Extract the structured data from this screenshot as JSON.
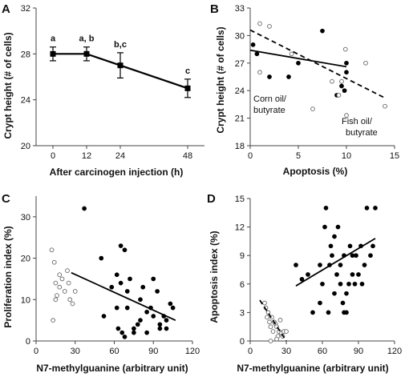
{
  "chart_data": [
    {
      "panel": "A",
      "type": "line",
      "xlabel": "After carcinogen injection (h)",
      "ylabel": "Crypt height (# of cells)",
      "xlim": [
        -6,
        54
      ],
      "ylim": [
        20,
        32
      ],
      "xticks": [
        0,
        12,
        24,
        48
      ],
      "yticks": [
        20,
        24,
        28,
        32
      ],
      "grid": false,
      "x": [
        0,
        12,
        24,
        48
      ],
      "y": [
        28.0,
        28.0,
        27.0,
        25.0
      ],
      "err": [
        0.6,
        0.6,
        1.1,
        0.8
      ],
      "letters": [
        "a",
        "a, b",
        "b,c",
        "c"
      ]
    },
    {
      "panel": "B",
      "type": "scatter",
      "xlabel": "Apoptosis (%)",
      "ylabel": "Crypt height (# of cells)",
      "xlim": [
        0,
        15
      ],
      "ylim": [
        18,
        33
      ],
      "xticks": [
        0,
        5,
        10,
        15
      ],
      "yticks": [
        18,
        21,
        24,
        27,
        30,
        33
      ],
      "grid": false,
      "series": [
        {
          "marker": "filled",
          "x": [
            0.3,
            0.7,
            2,
            4,
            5,
            7.5,
            9,
            9.5,
            9.8,
            10,
            10
          ],
          "y": [
            29,
            28,
            25.5,
            25.5,
            27,
            30.5,
            23.5,
            24.5,
            24,
            26,
            27
          ],
          "fit": [
            [
              0,
              28.4
            ],
            [
              10,
              26.6
            ]
          ]
        },
        {
          "marker": "open",
          "x": [
            1,
            1,
            2,
            4.3,
            6.5,
            8.5,
            9.2,
            9.5,
            9.9,
            10,
            12,
            14
          ],
          "y": [
            31.3,
            26,
            31,
            28,
            22,
            25,
            23.5,
            25,
            28.5,
            21.3,
            27,
            22.3
          ],
          "fit": [
            [
              0,
              30.6
            ],
            [
              14,
              23.2
            ]
          ]
        }
      ],
      "annotations": [
        "Corn oil/",
        "butyrate",
        "Fish oil/",
        "butyrate"
      ]
    },
    {
      "panel": "C",
      "type": "scatter",
      "xlabel": "N7-methylguanine (arbitrary unit)",
      "ylabel": "Proliferation index (%)",
      "xlim": [
        0,
        120
      ],
      "ylim": [
        0,
        35
      ],
      "xticks": [
        0,
        30,
        60,
        90,
        120
      ],
      "yticks": [
        0,
        10,
        20,
        30
      ],
      "grid": false,
      "series": [
        {
          "marker": "filled",
          "x": [
            37,
            50,
            52,
            58,
            62,
            63,
            65,
            66,
            68,
            70,
            72,
            75,
            78,
            80,
            82,
            85,
            88,
            90,
            93,
            95,
            98,
            100,
            103,
            105,
            62,
            65,
            70,
            75,
            80,
            85,
            90,
            95,
            100,
            68
          ],
          "y": [
            32,
            20,
            6,
            13,
            8,
            3,
            23,
            2,
            22,
            8,
            15,
            2,
            4,
            10,
            13,
            2,
            8,
            15,
            12,
            3,
            6,
            5,
            9,
            8,
            16,
            14,
            12,
            3,
            5,
            7,
            6,
            4,
            3,
            1
          ],
          "fit": [
            [
              27,
              16.5
            ],
            [
              107,
              5
            ]
          ]
        },
        {
          "marker": "open",
          "x": [
            12,
            13,
            14,
            15,
            16,
            18,
            20,
            22,
            24,
            26,
            28,
            30,
            15,
            18,
            25
          ],
          "y": [
            22,
            5,
            19,
            14,
            11,
            16,
            15,
            12,
            17,
            10,
            9,
            12,
            10,
            13,
            14
          ]
        }
      ]
    },
    {
      "panel": "D",
      "type": "scatter",
      "xlabel": "N7-methylguanine (arbitrary unit)",
      "ylabel": "Apoptosis index (%)",
      "xlim": [
        0,
        120
      ],
      "ylim": [
        0,
        15
      ],
      "xticks": [
        0,
        30,
        60,
        90,
        120
      ],
      "yticks": [
        0,
        3,
        6,
        9,
        12,
        15
      ],
      "grid": false,
      "series": [
        {
          "marker": "filled",
          "x": [
            38,
            43,
            48,
            52,
            58,
            60,
            62,
            63,
            65,
            67,
            68,
            70,
            72,
            73,
            75,
            77,
            78,
            80,
            82,
            83,
            85,
            87,
            88,
            90,
            92,
            93,
            95,
            97,
            100,
            102,
            104,
            70,
            75,
            80,
            85,
            58,
            66,
            78
          ],
          "y": [
            8,
            6.5,
            7,
            3,
            8,
            6,
            12,
            14,
            3,
            10,
            9,
            11,
            7,
            12,
            8,
            4,
            9,
            3,
            6,
            10,
            9,
            6,
            9,
            7,
            10,
            6,
            8,
            14,
            9,
            10,
            14,
            5,
            6,
            5,
            7,
            4,
            8,
            3
          ],
          "fit": [
            [
              38,
              5.8
            ],
            [
              104,
              10.8
            ]
          ]
        },
        {
          "marker": "open",
          "x": [
            12,
            13,
            14,
            15,
            16,
            17,
            18,
            19,
            20,
            21,
            22,
            23,
            24,
            25,
            26,
            27,
            28,
            30,
            17,
            22
          ],
          "y": [
            4,
            3.5,
            2.5,
            3,
            2,
            1.5,
            2.5,
            1,
            2,
            1.8,
            1.5,
            0.5,
            1,
            2.2,
            0.8,
            0.5,
            1,
            1,
            0,
            0.2
          ],
          "fit": [
            [
              8,
              4.3
            ],
            [
              30,
              0
            ]
          ]
        }
      ]
    }
  ],
  "panel_labels": [
    "A",
    "B",
    "C",
    "D"
  ]
}
